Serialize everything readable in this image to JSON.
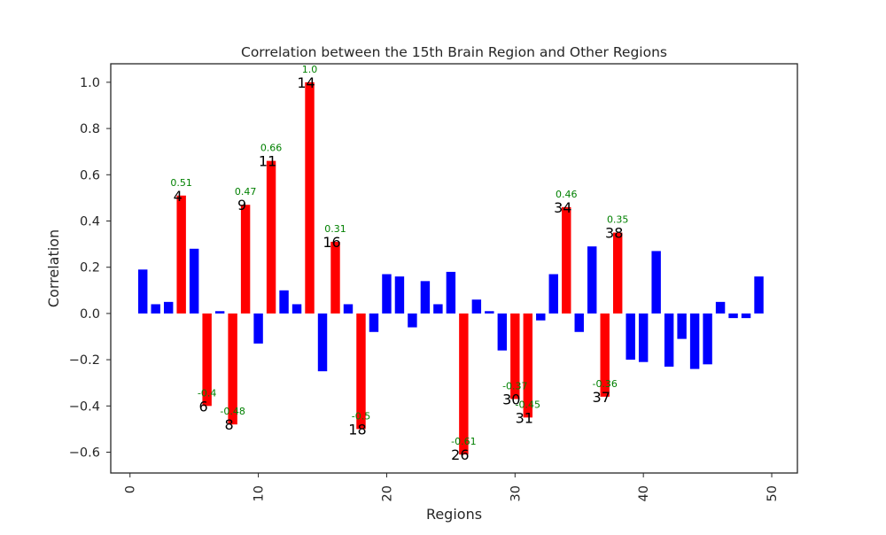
{
  "chart_data": {
    "type": "bar",
    "title": "Correlation between the 15th Brain Region and Other Regions",
    "xlabel": "Regions",
    "ylabel": "Correlation",
    "xlim": [
      -1.5,
      52
    ],
    "ylim": [
      -0.69,
      1.08
    ],
    "xticks": [
      0,
      10,
      20,
      30,
      40,
      50
    ],
    "xtick_labels": [
      "0",
      "10",
      "20",
      "30",
      "40",
      "50"
    ],
    "yticks": [
      -0.6,
      -0.4,
      -0.2,
      0.0,
      0.2,
      0.4,
      0.6,
      0.8,
      1.0
    ],
    "ytick_labels": [
      "−0.6",
      "−0.4",
      "−0.2",
      "0.0",
      "0.2",
      "0.4",
      "0.6",
      "0.8",
      "1.0"
    ],
    "grid": false,
    "colors": {
      "normal": "#0000ff",
      "highlight": "#ff0000",
      "value_label": "#008000",
      "index_label": "#000000"
    },
    "bars": [
      {
        "x": 1,
        "value": 0.19,
        "highlight": false
      },
      {
        "x": 2,
        "value": 0.04,
        "highlight": false
      },
      {
        "x": 3,
        "value": 0.05,
        "highlight": false
      },
      {
        "x": 4,
        "value": 0.51,
        "highlight": true,
        "value_label": "0.51",
        "index_label": "4"
      },
      {
        "x": 5,
        "value": 0.28,
        "highlight": false
      },
      {
        "x": 6,
        "value": -0.4,
        "highlight": true,
        "value_label": "-0.4",
        "index_label": "6"
      },
      {
        "x": 7,
        "value": 0.01,
        "highlight": false
      },
      {
        "x": 8,
        "value": -0.48,
        "highlight": true,
        "value_label": "-0.48",
        "index_label": "8"
      },
      {
        "x": 9,
        "value": 0.47,
        "highlight": true,
        "value_label": "0.47",
        "index_label": "9"
      },
      {
        "x": 10,
        "value": -0.13,
        "highlight": false
      },
      {
        "x": 11,
        "value": 0.66,
        "highlight": true,
        "value_label": "0.66",
        "index_label": "11"
      },
      {
        "x": 12,
        "value": 0.1,
        "highlight": false
      },
      {
        "x": 13,
        "value": 0.04,
        "highlight": false
      },
      {
        "x": 14,
        "value": 1.0,
        "highlight": true,
        "value_label": "1.0",
        "index_label": "14"
      },
      {
        "x": 15,
        "value": -0.25,
        "highlight": false
      },
      {
        "x": 16,
        "value": 0.31,
        "highlight": true,
        "value_label": "0.31",
        "index_label": "16"
      },
      {
        "x": 17,
        "value": 0.04,
        "highlight": false
      },
      {
        "x": 18,
        "value": -0.5,
        "highlight": true,
        "value_label": "-0.5",
        "index_label": "18"
      },
      {
        "x": 19,
        "value": -0.08,
        "highlight": false
      },
      {
        "x": 20,
        "value": 0.17,
        "highlight": false
      },
      {
        "x": 21,
        "value": 0.16,
        "highlight": false
      },
      {
        "x": 22,
        "value": -0.06,
        "highlight": false
      },
      {
        "x": 23,
        "value": 0.14,
        "highlight": false
      },
      {
        "x": 24,
        "value": 0.04,
        "highlight": false
      },
      {
        "x": 25,
        "value": 0.18,
        "highlight": false
      },
      {
        "x": 26,
        "value": -0.61,
        "highlight": true,
        "value_label": "-0.61",
        "index_label": "26"
      },
      {
        "x": 27,
        "value": 0.06,
        "highlight": false
      },
      {
        "x": 28,
        "value": 0.01,
        "highlight": false
      },
      {
        "x": 29,
        "value": -0.16,
        "highlight": false
      },
      {
        "x": 30,
        "value": -0.37,
        "highlight": true,
        "value_label": "-0.37",
        "index_label": "30"
      },
      {
        "x": 31,
        "value": -0.45,
        "highlight": true,
        "value_label": "-0.45",
        "index_label": "31"
      },
      {
        "x": 32,
        "value": -0.03,
        "highlight": false
      },
      {
        "x": 33,
        "value": 0.17,
        "highlight": false
      },
      {
        "x": 34,
        "value": 0.46,
        "highlight": true,
        "value_label": "0.46",
        "index_label": "34"
      },
      {
        "x": 35,
        "value": -0.08,
        "highlight": false
      },
      {
        "x": 36,
        "value": 0.29,
        "highlight": false
      },
      {
        "x": 37,
        "value": -0.36,
        "highlight": true,
        "value_label": "-0.36",
        "index_label": "37"
      },
      {
        "x": 38,
        "value": 0.35,
        "highlight": true,
        "value_label": "0.35",
        "index_label": "38"
      },
      {
        "x": 39,
        "value": -0.2,
        "highlight": false
      },
      {
        "x": 40,
        "value": -0.21,
        "highlight": false
      },
      {
        "x": 41,
        "value": 0.27,
        "highlight": false
      },
      {
        "x": 42,
        "value": -0.23,
        "highlight": false
      },
      {
        "x": 43,
        "value": -0.11,
        "highlight": false
      },
      {
        "x": 44,
        "value": -0.24,
        "highlight": false
      },
      {
        "x": 45,
        "value": -0.22,
        "highlight": false
      },
      {
        "x": 46,
        "value": 0.05,
        "highlight": false
      },
      {
        "x": 47,
        "value": -0.02,
        "highlight": false
      },
      {
        "x": 48,
        "value": -0.02,
        "highlight": false
      },
      {
        "x": 49,
        "value": 0.16,
        "highlight": false
      }
    ]
  }
}
